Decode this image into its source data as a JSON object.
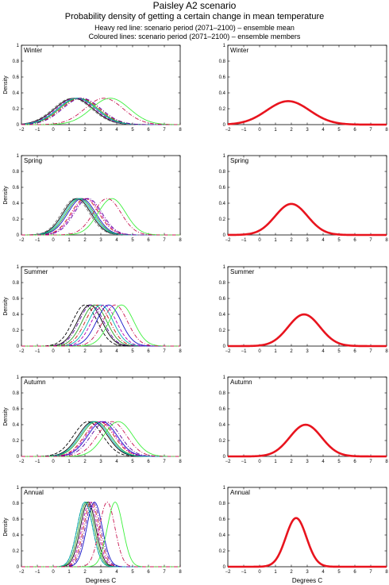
{
  "header": {
    "title": "Paisley A2 scenario",
    "subtitle": "Probability density of getting a certain change in mean temperature",
    "line1": "Heavy red line: scenario period (2071–2100) – ensemble mean",
    "line2": "Coloured lines: scenario period (2071–2100) – ensemble members"
  },
  "axes": {
    "ylabel": "Density",
    "xlabel": "Degrees C",
    "xlim": [
      -2,
      8
    ],
    "ylim": [
      0,
      1
    ],
    "xticks": [
      "−2",
      "−1",
      "0",
      "1",
      "2",
      "3",
      "4",
      "5",
      "6",
      "7",
      "8"
    ],
    "yticks": [
      "0",
      "0.2",
      "0.4",
      "0.6",
      "0.8",
      "1"
    ]
  },
  "colors": {
    "mean": "#e8141e",
    "members": [
      "#000000",
      "#1010c8",
      "#c81414",
      "#2aa02a",
      "#b400b4",
      "#00b4b4",
      "#7a7a7a",
      "#3cf03c",
      "#c81450",
      "#5a00a0"
    ]
  },
  "chart_data": [
    {
      "type": "line",
      "panel": "ensemble-members",
      "season": "Winter",
      "series": [
        {
          "mu": 1.3,
          "sigma": 1.2,
          "dash": "solid",
          "color": "#000000"
        },
        {
          "mu": 1.5,
          "sigma": 1.2,
          "dash": "solid",
          "color": "#1010c8"
        },
        {
          "mu": 1.7,
          "sigma": 1.2,
          "dash": "dashdot",
          "color": "#c81414"
        },
        {
          "mu": 1.6,
          "sigma": 1.2,
          "dash": "solid",
          "color": "#2aa02a"
        },
        {
          "mu": 1.4,
          "sigma": 1.2,
          "dash": "dashed",
          "color": "#b400b4"
        },
        {
          "mu": 1.5,
          "sigma": 1.2,
          "dash": "solid",
          "color": "#00b4b4"
        },
        {
          "mu": 1.2,
          "sigma": 1.2,
          "dash": "dashed",
          "color": "#7a7a7a"
        },
        {
          "mu": 1.8,
          "sigma": 1.2,
          "dash": "dashdot",
          "color": "#5a00a0"
        },
        {
          "mu": 3.6,
          "sigma": 1.2,
          "dash": "solid",
          "color": "#3cf03c"
        },
        {
          "mu": 3.2,
          "sigma": 1.2,
          "dash": "dashdot",
          "color": "#c81450"
        }
      ]
    },
    {
      "type": "line",
      "panel": "ensemble-mean",
      "season": "Winter",
      "series": [
        {
          "mu": 1.8,
          "sigma": 1.35,
          "dash": "solid",
          "color": "#e8141e"
        }
      ]
    },
    {
      "type": "line",
      "panel": "ensemble-members",
      "season": "Spring",
      "series": [
        {
          "mu": 1.5,
          "sigma": 0.87,
          "dash": "solid",
          "color": "#000000"
        },
        {
          "mu": 1.8,
          "sigma": 0.87,
          "dash": "solid",
          "color": "#1010c8"
        },
        {
          "mu": 2.0,
          "sigma": 0.87,
          "dash": "dashdot",
          "color": "#c81414"
        },
        {
          "mu": 1.7,
          "sigma": 0.87,
          "dash": "solid",
          "color": "#2aa02a"
        },
        {
          "mu": 2.1,
          "sigma": 0.87,
          "dash": "dashed",
          "color": "#b400b4"
        },
        {
          "mu": 1.6,
          "sigma": 0.87,
          "dash": "solid",
          "color": "#00b4b4"
        },
        {
          "mu": 1.4,
          "sigma": 0.87,
          "dash": "dashed",
          "color": "#7a7a7a"
        },
        {
          "mu": 2.2,
          "sigma": 0.87,
          "dash": "dashdot",
          "color": "#5a00a0"
        },
        {
          "mu": 3.7,
          "sigma": 0.87,
          "dash": "solid",
          "color": "#3cf03c"
        },
        {
          "mu": 3.4,
          "sigma": 0.87,
          "dash": "dashdot",
          "color": "#c81450"
        }
      ]
    },
    {
      "type": "line",
      "panel": "ensemble-mean",
      "season": "Spring",
      "series": [
        {
          "mu": 2.0,
          "sigma": 1.02,
          "dash": "solid",
          "color": "#e8141e"
        }
      ]
    },
    {
      "type": "line",
      "panel": "ensemble-members",
      "season": "Summer",
      "series": [
        {
          "mu": 2.0,
          "sigma": 0.77,
          "dash": "dashed",
          "color": "#000000"
        },
        {
          "mu": 2.3,
          "sigma": 0.77,
          "dash": "solid",
          "color": "#000000"
        },
        {
          "mu": 2.6,
          "sigma": 0.77,
          "dash": "solid",
          "color": "#2aa02a"
        },
        {
          "mu": 2.8,
          "sigma": 0.77,
          "dash": "dashdot",
          "color": "#c81414"
        },
        {
          "mu": 3.0,
          "sigma": 0.77,
          "dash": "solid",
          "color": "#00b4b4"
        },
        {
          "mu": 3.2,
          "sigma": 0.77,
          "dash": "dashed",
          "color": "#b400b4"
        },
        {
          "mu": 3.5,
          "sigma": 0.77,
          "dash": "solid",
          "color": "#1010c8"
        },
        {
          "mu": 2.4,
          "sigma": 0.77,
          "dash": "dashdot",
          "color": "#5a00a0"
        },
        {
          "mu": 4.3,
          "sigma": 0.77,
          "dash": "solid",
          "color": "#3cf03c"
        },
        {
          "mu": 3.9,
          "sigma": 0.77,
          "dash": "dashdot",
          "color": "#c81450"
        }
      ]
    },
    {
      "type": "line",
      "panel": "ensemble-mean",
      "season": "Summer",
      "series": [
        {
          "mu": 2.8,
          "sigma": 1.0,
          "dash": "solid",
          "color": "#e8141e"
        }
      ]
    },
    {
      "type": "line",
      "panel": "ensemble-members",
      "season": "Autumn",
      "series": [
        {
          "mu": 2.2,
          "sigma": 0.91,
          "dash": "dashed",
          "color": "#000000"
        },
        {
          "mu": 2.5,
          "sigma": 0.91,
          "dash": "solid",
          "color": "#000000"
        },
        {
          "mu": 2.7,
          "sigma": 0.91,
          "dash": "solid",
          "color": "#2aa02a"
        },
        {
          "mu": 2.9,
          "sigma": 0.91,
          "dash": "dashdot",
          "color": "#c81414"
        },
        {
          "mu": 3.1,
          "sigma": 0.91,
          "dash": "solid",
          "color": "#1010c8"
        },
        {
          "mu": 3.0,
          "sigma": 0.91,
          "dash": "dashed",
          "color": "#b400b4"
        },
        {
          "mu": 2.6,
          "sigma": 0.91,
          "dash": "solid",
          "color": "#00b4b4"
        },
        {
          "mu": 3.3,
          "sigma": 0.91,
          "dash": "dashdot",
          "color": "#5a00a0"
        },
        {
          "mu": 4.1,
          "sigma": 0.91,
          "dash": "solid",
          "color": "#3cf03c"
        },
        {
          "mu": 3.7,
          "sigma": 0.91,
          "dash": "dashdot",
          "color": "#c81450"
        }
      ]
    },
    {
      "type": "line",
      "panel": "ensemble-mean",
      "season": "Autumn",
      "series": [
        {
          "mu": 2.9,
          "sigma": 1.0,
          "dash": "solid",
          "color": "#e8141e"
        }
      ]
    },
    {
      "type": "line",
      "panel": "ensemble-members",
      "season": "Annual",
      "series": [
        {
          "mu": 2.0,
          "sigma": 0.49,
          "dash": "dashed",
          "color": "#000000"
        },
        {
          "mu": 2.2,
          "sigma": 0.49,
          "dash": "solid",
          "color": "#000000"
        },
        {
          "mu": 2.1,
          "sigma": 0.49,
          "dash": "solid",
          "color": "#2aa02a"
        },
        {
          "mu": 2.4,
          "sigma": 0.49,
          "dash": "dashdot",
          "color": "#c81414"
        },
        {
          "mu": 2.6,
          "sigma": 0.49,
          "dash": "solid",
          "color": "#1010c8"
        },
        {
          "mu": 2.3,
          "sigma": 0.49,
          "dash": "dashed",
          "color": "#b400b4"
        },
        {
          "mu": 2.0,
          "sigma": 0.49,
          "dash": "solid",
          "color": "#00b4b4"
        },
        {
          "mu": 2.5,
          "sigma": 0.49,
          "dash": "dashdot",
          "color": "#5a00a0"
        },
        {
          "mu": 3.9,
          "sigma": 0.49,
          "dash": "solid",
          "color": "#3cf03c"
        },
        {
          "mu": 3.4,
          "sigma": 0.49,
          "dash": "dashdot",
          "color": "#c81450"
        }
      ]
    },
    {
      "type": "line",
      "panel": "ensemble-mean",
      "season": "Annual",
      "series": [
        {
          "mu": 2.3,
          "sigma": 0.65,
          "dash": "solid",
          "color": "#e8141e"
        }
      ]
    }
  ]
}
